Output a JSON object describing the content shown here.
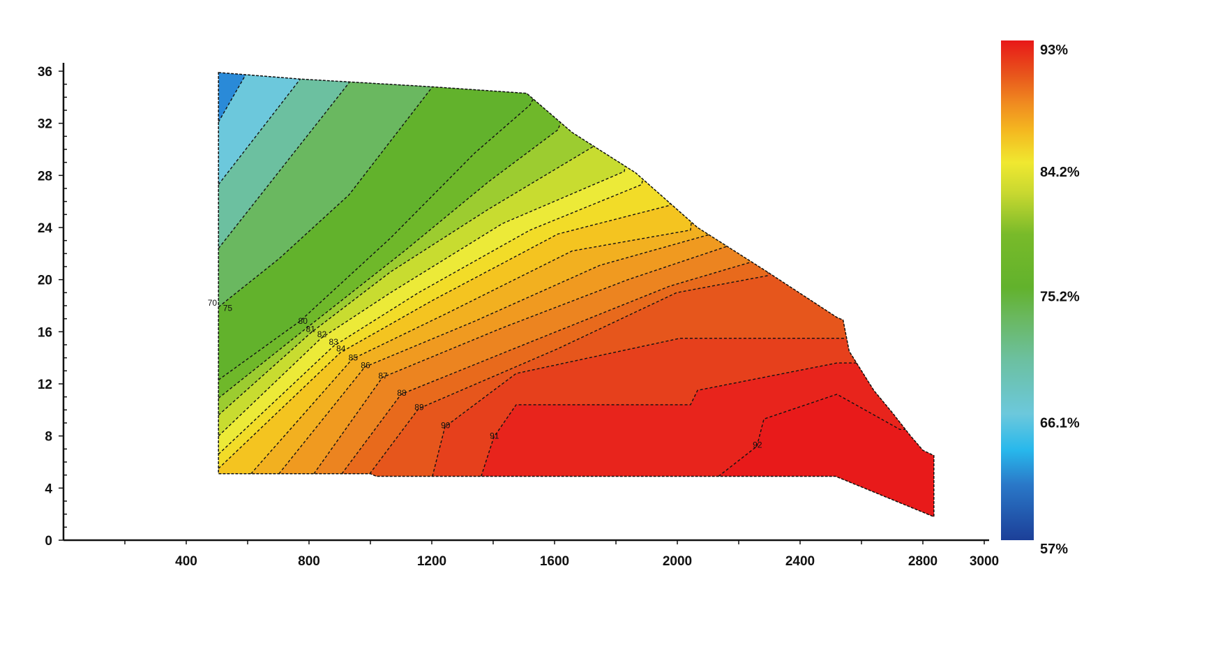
{
  "chart_data": {
    "type": "heatmap",
    "subtype": "filled-contour",
    "title": "",
    "xlabel": "",
    "ylabel": "",
    "xlim": [
      0,
      3000
    ],
    "ylim": [
      0,
      36
    ],
    "x_ticks": [
      400,
      800,
      1200,
      1600,
      2000,
      2400,
      2800,
      3000
    ],
    "y_ticks": [
      0,
      4,
      8,
      12,
      16,
      20,
      24,
      28,
      32,
      36
    ],
    "x_tick_labels": [
      "400",
      "800",
      "1200",
      "1600",
      "2000",
      "2400",
      "2800",
      "3000"
    ],
    "y_tick_labels": [
      "0",
      "4",
      "8",
      "12",
      "16",
      "20",
      "24",
      "28",
      "32",
      "36"
    ],
    "colorbar": {
      "range": [
        57,
        93
      ],
      "tick_labels": [
        "93%",
        "84.2%",
        "75.2%",
        "66.1%",
        "57%"
      ],
      "tick_values": [
        93,
        84.2,
        75.2,
        66.1,
        57
      ],
      "stops": [
        {
          "v": 57,
          "c": "#1c3f98"
        },
        {
          "v": 61,
          "c": "#2a78c8"
        },
        {
          "v": 63.5,
          "c": "#28b8ec"
        },
        {
          "v": 66.1,
          "c": "#6cc8dc"
        },
        {
          "v": 70,
          "c": "#6cc0a0"
        },
        {
          "v": 73,
          "c": "#6ab860"
        },
        {
          "v": 75.2,
          "c": "#62b22c"
        },
        {
          "v": 79,
          "c": "#78ba2a"
        },
        {
          "v": 82,
          "c": "#c8d830"
        },
        {
          "v": 84.2,
          "c": "#f0e830"
        },
        {
          "v": 86.5,
          "c": "#f4b820"
        },
        {
          "v": 88.5,
          "c": "#f08a20"
        },
        {
          "v": 90.5,
          "c": "#e8561c"
        },
        {
          "v": 93,
          "c": "#e81818"
        }
      ]
    },
    "base_color": "#2a8ad8",
    "boundary": [
      [
        505,
        35.9
      ],
      [
        770,
        35.4
      ],
      [
        1202,
        34.8
      ],
      [
        1509,
        34.3
      ],
      [
        1657,
        31.3
      ],
      [
        1864,
        28.2
      ],
      [
        2066,
        24.0
      ],
      [
        2293,
        20.6
      ],
      [
        2520,
        17.1
      ],
      [
        2540,
        16.9
      ],
      [
        2560,
        14.5
      ],
      [
        2600,
        13.0
      ],
      [
        2640,
        11.5
      ],
      [
        2700,
        9.8
      ],
      [
        2760,
        8.0
      ],
      [
        2800,
        6.9
      ],
      [
        2836,
        6.5
      ],
      [
        2836,
        1.8
      ],
      [
        2516,
        4.9
      ],
      [
        1020,
        4.9
      ],
      [
        1000,
        5.1
      ],
      [
        505,
        5.1
      ]
    ],
    "contours": [
      {
        "level": 66,
        "color": "#6cc8dc",
        "points": [
          [
            505,
            32.1
          ],
          [
            593,
            35.7
          ],
          [
            610,
            37
          ]
        ]
      },
      {
        "level": 70,
        "color": "#6cc0a0",
        "points": [
          [
            505,
            27.3
          ],
          [
            775,
            35.5
          ],
          [
            800,
            37
          ]
        ]
      },
      {
        "level": 73,
        "color": "#6ab860",
        "points": [
          [
            505,
            22.4
          ],
          [
            930,
            35.1
          ],
          [
            960,
            37
          ]
        ]
      },
      {
        "level": 75,
        "color": "#62b22c",
        "points": [
          [
            505,
            17.9
          ],
          [
            702,
            21.6
          ],
          [
            930,
            26.5
          ],
          [
            1202,
            34.8
          ],
          [
            1240,
            37
          ]
        ]
      },
      {
        "level": 78,
        "color": "#6fb82a",
        "points": [
          [
            505,
            12.3
          ],
          [
            770,
            16.8
          ],
          [
            1066,
            23.2
          ],
          [
            1339,
            29.7
          ],
          [
            1520,
            33.4
          ],
          [
            1600,
            37
          ]
        ]
      },
      {
        "level": 80,
        "color": "#9ccc30",
        "points": [
          [
            505,
            10.9
          ],
          [
            793,
            16.3
          ],
          [
            1111,
            22.2
          ],
          [
            1384,
            27.5
          ],
          [
            1611,
            31.5
          ],
          [
            1700,
            37
          ]
        ]
      },
      {
        "level": 81,
        "color": "#c8dc30",
        "points": [
          [
            505,
            9.6
          ],
          [
            805,
            15.9
          ],
          [
            1066,
            20.6
          ],
          [
            1384,
            25.4
          ],
          [
            1725,
            30.2
          ],
          [
            1800,
            37
          ]
        ]
      },
      {
        "level": 82,
        "color": "#ecea38",
        "points": [
          [
            505,
            8.0
          ],
          [
            839,
            15.5
          ],
          [
            1066,
            19.0
          ],
          [
            1430,
            24.3
          ],
          [
            1827,
            28.3
          ],
          [
            1900,
            37
          ]
        ]
      },
      {
        "level": 83,
        "color": "#f2dc28",
        "points": [
          [
            505,
            6.6
          ],
          [
            880,
            14.9
          ],
          [
            1157,
            19.0
          ],
          [
            1520,
            23.8
          ],
          [
            1884,
            27.3
          ],
          [
            1950,
            37
          ]
        ]
      },
      {
        "level": 84,
        "color": "#f4c420",
        "points": [
          [
            505,
            5.5
          ],
          [
            902,
            14.4
          ],
          [
            1202,
            18.4
          ],
          [
            1611,
            23.5
          ],
          [
            1975,
            25.7
          ],
          [
            2050,
            37
          ]
        ]
      },
      {
        "level": 85,
        "color": "#f2b020",
        "points": [
          [
            611,
            5.1
          ],
          [
            941,
            13.9
          ],
          [
            1248,
            17.4
          ],
          [
            1657,
            22.2
          ],
          [
            2043,
            23.8
          ],
          [
            2100,
            37
          ]
        ]
      },
      {
        "level": 86,
        "color": "#f09a20",
        "points": [
          [
            702,
            5.1
          ],
          [
            982,
            13.3
          ],
          [
            1339,
            16.8
          ],
          [
            1748,
            21.1
          ],
          [
            2111,
            23.5
          ],
          [
            2200,
            37
          ]
        ]
      },
      {
        "level": 87,
        "color": "#ec8420",
        "points": [
          [
            816,
            5.1
          ],
          [
            1039,
            12.5
          ],
          [
            1430,
            16.3
          ],
          [
            1839,
            20.0
          ],
          [
            2180,
            22.7
          ],
          [
            2250,
            37
          ]
        ]
      },
      {
        "level": 88,
        "color": "#e86a1c",
        "points": [
          [
            907,
            5.1
          ],
          [
            1100,
            11.2
          ],
          [
            1520,
            15.2
          ],
          [
            1975,
            19.5
          ],
          [
            2248,
            21.4
          ],
          [
            2350,
            37
          ]
        ]
      },
      {
        "level": 89,
        "color": "#e6561c",
        "points": [
          [
            998,
            5.1
          ],
          [
            1157,
            10.1
          ],
          [
            1611,
            14.7
          ],
          [
            1998,
            19.0
          ],
          [
            2293,
            20.3
          ],
          [
            2450,
            37
          ]
        ]
      },
      {
        "level": 90,
        "color": "#e6401c",
        "points": [
          [
            1202,
            4.9
          ],
          [
            1243,
            8.7
          ],
          [
            1475,
            12.8
          ],
          [
            2009,
            15.5
          ],
          [
            2543,
            15.5
          ],
          [
            2900,
            15.5
          ]
        ]
      },
      {
        "level": 91,
        "color": "#e8241c",
        "points": [
          [
            1361,
            4.9
          ],
          [
            1402,
            7.9
          ],
          [
            1475,
            10.4
          ],
          [
            2043,
            10.4
          ],
          [
            2066,
            11.5
          ],
          [
            2520,
            13.6
          ],
          [
            2900,
            13.6
          ]
        ]
      },
      {
        "level": 92,
        "color": "#e81a1a",
        "points": [
          [
            2134,
            4.9
          ],
          [
            2259,
            7.2
          ],
          [
            2282,
            9.3
          ],
          [
            2520,
            11.2
          ],
          [
            2725,
            8.5
          ],
          [
            2900,
            8.5
          ]
        ]
      }
    ],
    "contour_labels": [
      {
        "text": "70",
        "x": 485,
        "y": 18.0
      },
      {
        "text": "75",
        "x": 535,
        "y": 17.6
      },
      {
        "text": "80",
        "x": 780,
        "y": 16.6
      },
      {
        "text": "81",
        "x": 805,
        "y": 16.0
      },
      {
        "text": "82",
        "x": 842,
        "y": 15.6
      },
      {
        "text": "83",
        "x": 880,
        "y": 15.0
      },
      {
        "text": "84",
        "x": 904,
        "y": 14.5
      },
      {
        "text": "85",
        "x": 944,
        "y": 13.8
      },
      {
        "text": "86",
        "x": 984,
        "y": 13.2
      },
      {
        "text": "87",
        "x": 1041,
        "y": 12.4
      },
      {
        "text": "88",
        "x": 1102,
        "y": 11.1
      },
      {
        "text": "89",
        "x": 1159,
        "y": 10.0
      },
      {
        "text": "90",
        "x": 1245,
        "y": 8.6
      },
      {
        "text": "91",
        "x": 1404,
        "y": 7.8
      },
      {
        "text": "92",
        "x": 2261,
        "y": 7.1
      }
    ]
  }
}
